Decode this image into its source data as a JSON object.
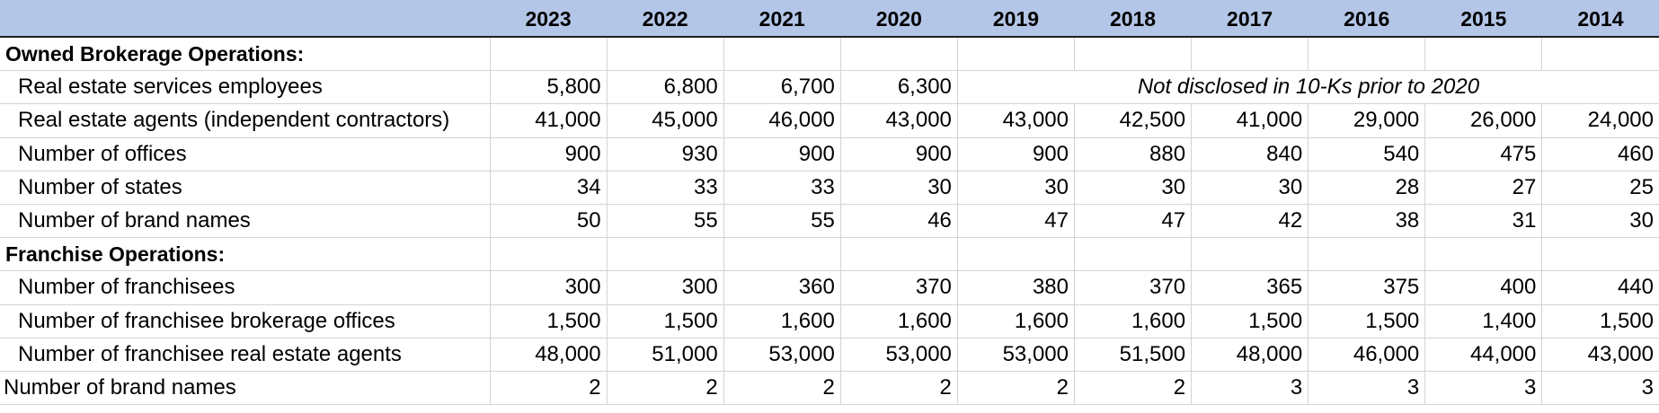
{
  "columns": [
    "2023",
    "2022",
    "2021",
    "2020",
    "2019",
    "2018",
    "2017",
    "2016",
    "2015",
    "2014"
  ],
  "sections": {
    "owned": {
      "title": "Owned Brokerage Operations:",
      "employees": {
        "label": "Real estate services employees",
        "values": [
          "5,800",
          "6,800",
          "6,700",
          "6,300"
        ],
        "note": "Not disclosed in 10-Ks prior to 2020"
      },
      "agents": {
        "label": "Real estate agents (independent contractors)",
        "values": [
          "41,000",
          "45,000",
          "46,000",
          "43,000",
          "43,000",
          "42,500",
          "41,000",
          "29,000",
          "26,000",
          "24,000"
        ]
      },
      "offices": {
        "label": "Number of offices",
        "values": [
          "900",
          "930",
          "900",
          "900",
          "900",
          "880",
          "840",
          "540",
          "475",
          "460"
        ]
      },
      "states": {
        "label": "Number of states",
        "values": [
          "34",
          "33",
          "33",
          "30",
          "30",
          "30",
          "30",
          "28",
          "27",
          "25"
        ]
      },
      "brands": {
        "label": "Number of brand names",
        "values": [
          "50",
          "55",
          "55",
          "46",
          "47",
          "47",
          "42",
          "38",
          "31",
          "30"
        ]
      }
    },
    "franchise": {
      "title": "Franchise Operations:",
      "franchisees": {
        "label": "Number of franchisees",
        "values": [
          "300",
          "300",
          "360",
          "370",
          "380",
          "370",
          "365",
          "375",
          "400",
          "440"
        ]
      },
      "offices": {
        "label": "Number of franchisee brokerage offices",
        "values": [
          "1,500",
          "1,500",
          "1,600",
          "1,600",
          "1,600",
          "1,600",
          "1,500",
          "1,500",
          "1,400",
          "1,500"
        ]
      },
      "agents": {
        "label": "Number of franchisee real estate agents",
        "values": [
          "48,000",
          "51,000",
          "53,000",
          "53,000",
          "53,000",
          "51,500",
          "48,000",
          "46,000",
          "44,000",
          "43,000"
        ]
      }
    },
    "brands_total": {
      "label": "Number of brand names",
      "values": [
        "2",
        "2",
        "2",
        "2",
        "2",
        "2",
        "3",
        "3",
        "3",
        "3"
      ]
    }
  }
}
